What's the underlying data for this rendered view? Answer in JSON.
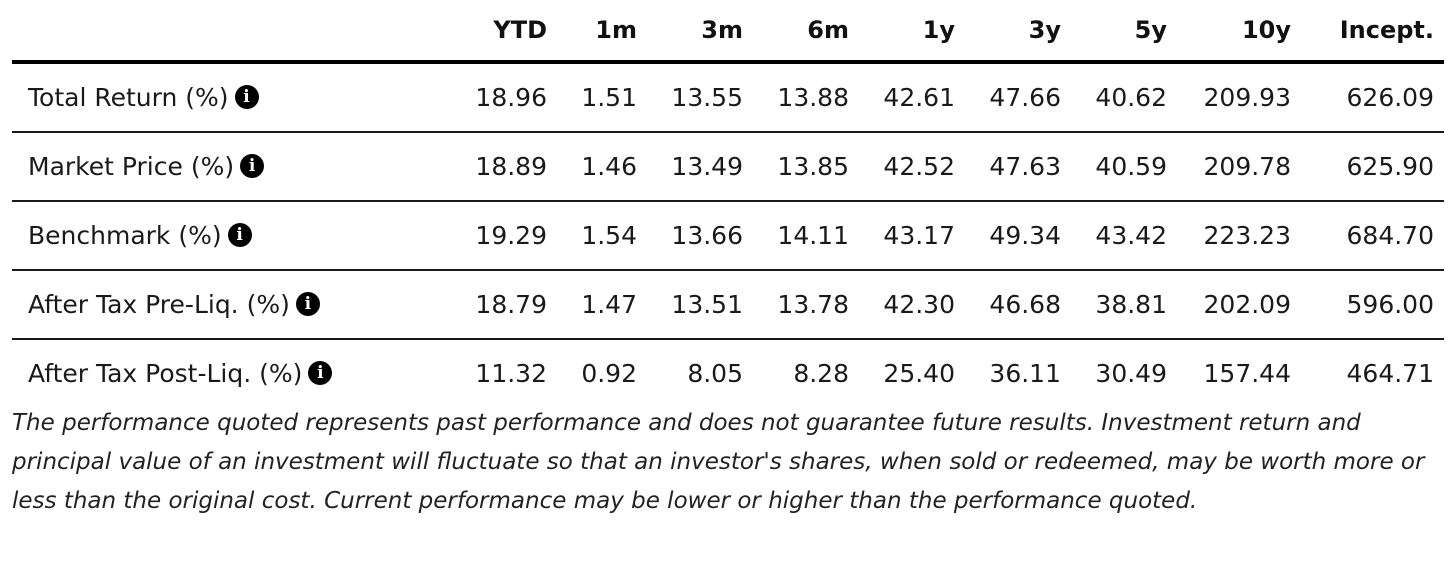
{
  "table": {
    "headers": [
      "",
      "YTD",
      "1m",
      "3m",
      "6m",
      "1y",
      "3y",
      "5y",
      "10y",
      "Incept."
    ],
    "rows": [
      {
        "label": "Total Return (%)",
        "info_icon": "info-icon",
        "values": [
          "18.96",
          "1.51",
          "13.55",
          "13.88",
          "42.61",
          "47.66",
          "40.62",
          "209.93",
          "626.09"
        ]
      },
      {
        "label": "Market Price (%)",
        "info_icon": "info-icon",
        "values": [
          "18.89",
          "1.46",
          "13.49",
          "13.85",
          "42.52",
          "47.63",
          "40.59",
          "209.78",
          "625.90"
        ]
      },
      {
        "label": "Benchmark (%)",
        "info_icon": "info-icon",
        "values": [
          "19.29",
          "1.54",
          "13.66",
          "14.11",
          "43.17",
          "49.34",
          "43.42",
          "223.23",
          "684.70"
        ]
      },
      {
        "label": "After Tax Pre-Liq. (%)",
        "info_icon": "info-icon",
        "values": [
          "18.79",
          "1.47",
          "13.51",
          "13.78",
          "42.30",
          "46.68",
          "38.81",
          "202.09",
          "596.00"
        ]
      },
      {
        "label": "After Tax Post-Liq. (%)",
        "info_icon": "info-icon",
        "values": [
          "11.32",
          "0.92",
          "8.05",
          "8.28",
          "25.40",
          "36.11",
          "30.49",
          "157.44",
          "464.71"
        ]
      }
    ]
  },
  "disclaimer": "The performance quoted represents past performance and does not guarantee future results. Investment return and principal value of an investment will fluctuate so that an investor's shares, when sold or redeemed, may be worth more or less than the original cost. Current performance may be lower or higher than the performance quoted.",
  "colors": {
    "text": "#1a1a1a",
    "rule": "#000000",
    "background": "#ffffff"
  }
}
